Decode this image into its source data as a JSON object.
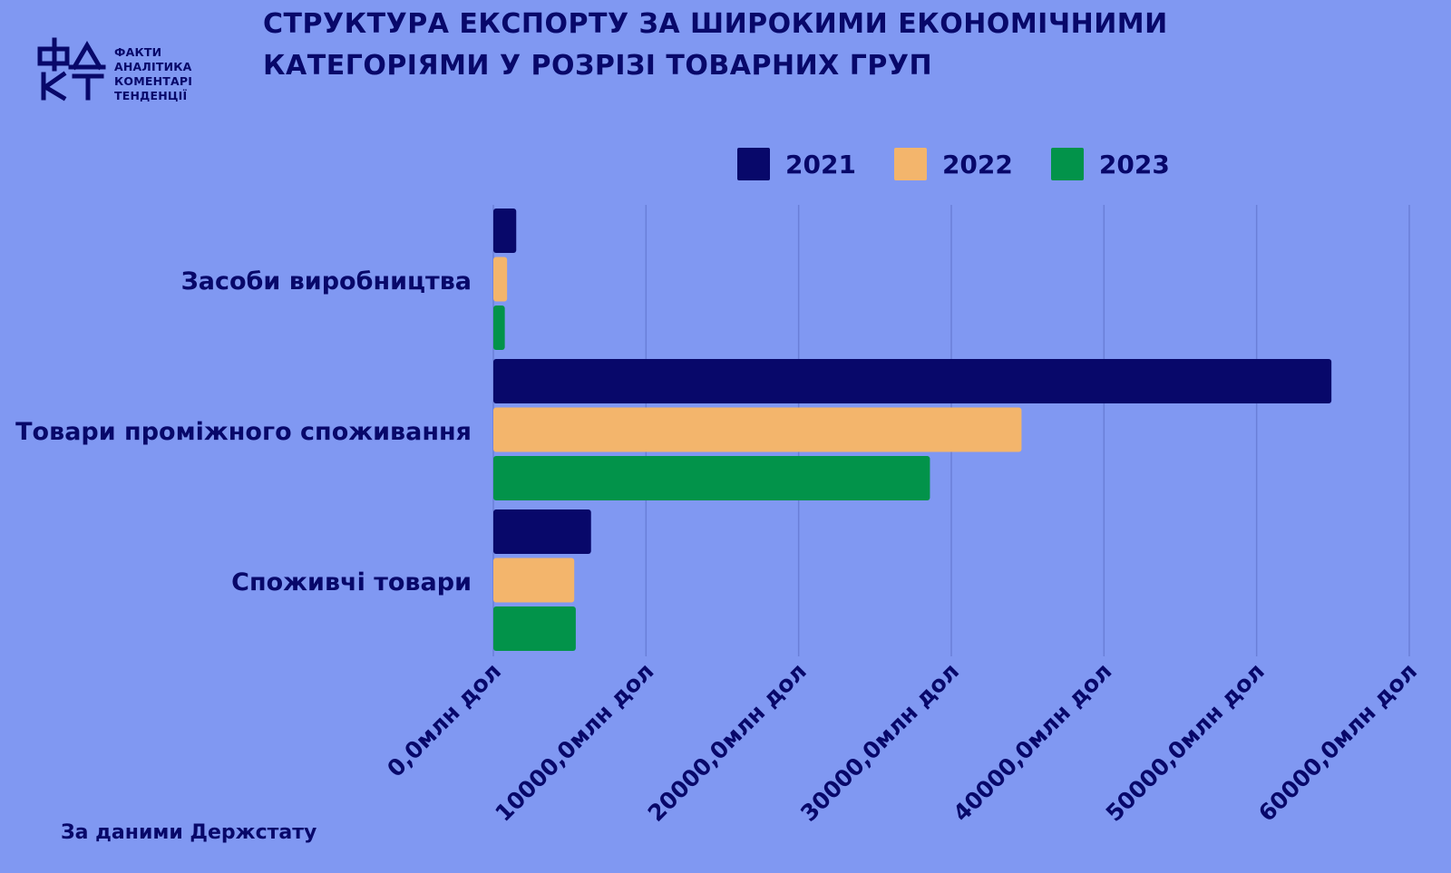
{
  "logo": {
    "mark": "ФАКТ",
    "lines": [
      "ФАКТИ",
      "АНАЛІТИКА",
      "КОМЕНТАРІ",
      "ТЕНДЕНЦІЇ"
    ]
  },
  "title_lines": [
    "СТРУКТУРА ЕКСПОРТУ ЗА ШИРОКИМИ ЕКОНОМІЧНИМИ",
    "КАТЕГОРІЯМИ У РОЗРІЗІ ТОВАРНИХ ГРУП"
  ],
  "source": "За даними Держстату",
  "colors": {
    "background": "#8098f2",
    "text": "#08086a",
    "grid": "#6a7fd8"
  },
  "chart_data": {
    "type": "bar",
    "orientation": "horizontal",
    "title": "СТРУКТУРА ЕКСПОРТУ ЗА ШИРОКИМИ ЕКОНОМІЧНИМИ КАТЕГОРІЯМИ У РОЗРІЗІ ТОВАРНИХ ГРУП",
    "categories": [
      "Засоби виробництва",
      "Товари проміжного споживання",
      "Споживчі товари"
    ],
    "series": [
      {
        "name": "2021",
        "color": "#08086a",
        "values": [
          1500,
          54900,
          6400
        ]
      },
      {
        "name": "2022",
        "color": "#f3b56c",
        "values": [
          900,
          34600,
          5300
        ]
      },
      {
        "name": "2023",
        "color": "#02934a",
        "values": [
          750,
          28600,
          5400
        ]
      }
    ],
    "xlim": [
      0,
      60000
    ],
    "ticks": [
      0,
      10000,
      20000,
      30000,
      40000,
      50000,
      60000
    ],
    "tick_labels": [
      "0,0млн дол",
      "10000,0млн дол",
      "20000,0млн дол",
      "30000,0млн дол",
      "40000,0млн дол",
      "50000,0млн дол",
      "60000,0млн дол"
    ],
    "grid": true,
    "legend_position": "top"
  }
}
